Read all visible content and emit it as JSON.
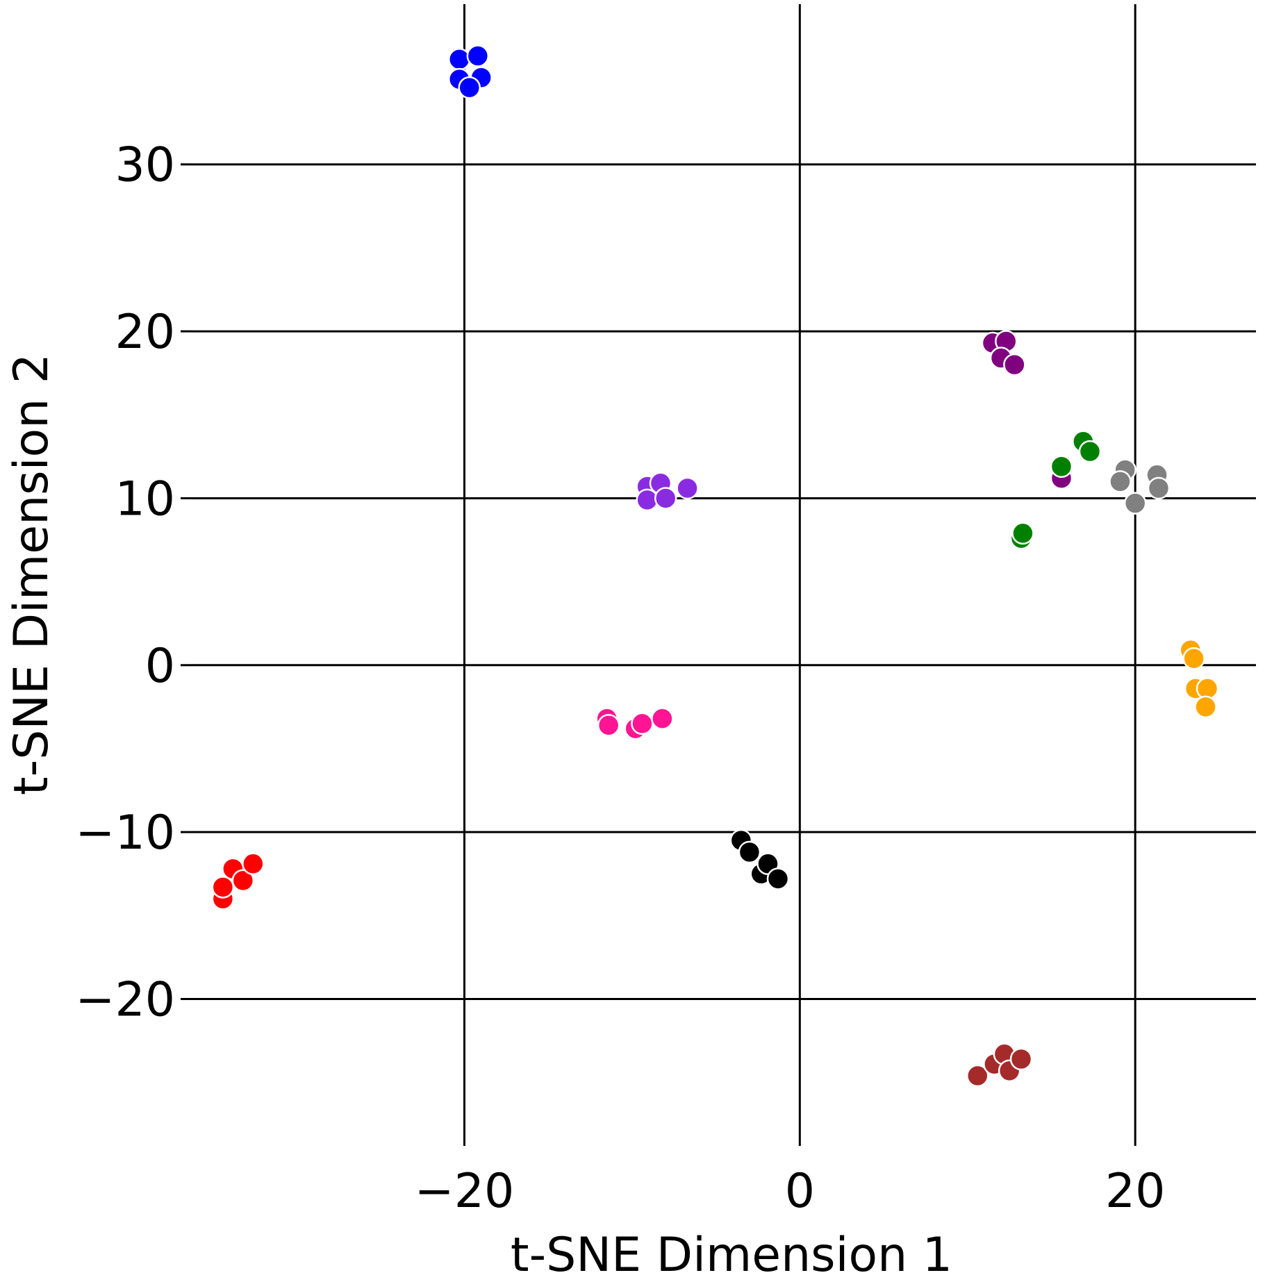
{
  "chart_data": {
    "type": "scatter",
    "title": "",
    "xlabel": "t-SNE Dimension 1",
    "ylabel": "t-SNE Dimension 2",
    "xlim": [
      -36.3,
      27.2
    ],
    "ylim": [
      -28.8,
      39.6
    ],
    "grid": true,
    "x_ticks": [
      -20,
      0,
      20
    ],
    "y_ticks": [
      -20,
      -10,
      0,
      10,
      20,
      30
    ],
    "x_tick_labels": [
      "−20",
      "0",
      "20"
    ],
    "y_tick_labels": [
      "−20",
      "−10",
      "0",
      "10",
      "20",
      "30"
    ],
    "marker_edge_color": "#ffffff",
    "series": [
      {
        "color": "#0000ff",
        "points": [
          [
            -20.3,
            36.3
          ],
          [
            -19.2,
            36.5
          ],
          [
            -20.3,
            35.1
          ],
          [
            -19.0,
            35.2
          ],
          [
            -19.7,
            34.6
          ]
        ]
      },
      {
        "color": "#8a2be2",
        "points": [
          [
            -9.1,
            10.7
          ],
          [
            -8.3,
            10.9
          ],
          [
            -6.7,
            10.6
          ],
          [
            -9.1,
            9.9
          ],
          [
            -8.0,
            10.0
          ]
        ]
      },
      {
        "color": "#ff1493",
        "points": [
          [
            -11.5,
            -3.2
          ],
          [
            -11.4,
            -3.6
          ],
          [
            -9.8,
            -3.8
          ],
          [
            -9.4,
            -3.5
          ],
          [
            -8.2,
            -3.2
          ]
        ]
      },
      {
        "color": "#000000",
        "points": [
          [
            -3.5,
            -10.5
          ],
          [
            -3.0,
            -11.2
          ],
          [
            -2.3,
            -12.5
          ],
          [
            -1.9,
            -11.9
          ],
          [
            -1.3,
            -12.8
          ]
        ]
      },
      {
        "color": "#ff0000",
        "points": [
          [
            -34.4,
            -14.0
          ],
          [
            -34.4,
            -13.3
          ],
          [
            -33.8,
            -12.2
          ],
          [
            -33.2,
            -12.9
          ],
          [
            -32.6,
            -11.9
          ]
        ]
      },
      {
        "color": "#800080",
        "points": [
          [
            11.5,
            19.3
          ],
          [
            12.3,
            19.4
          ],
          [
            12.0,
            18.4
          ],
          [
            12.8,
            18.0
          ],
          [
            15.6,
            11.2
          ]
        ]
      },
      {
        "color": "#008000",
        "points": [
          [
            16.9,
            13.4
          ],
          [
            17.3,
            12.8
          ],
          [
            15.6,
            11.9
          ],
          [
            13.2,
            7.6
          ],
          [
            13.3,
            7.9
          ]
        ]
      },
      {
        "color": "#808080",
        "points": [
          [
            19.4,
            11.7
          ],
          [
            19.1,
            11.0
          ],
          [
            21.3,
            11.4
          ],
          [
            21.4,
            10.6
          ],
          [
            20.0,
            9.7
          ]
        ]
      },
      {
        "color": "#ffa500",
        "points": [
          [
            23.3,
            0.9
          ],
          [
            23.5,
            0.4
          ],
          [
            23.6,
            -1.4
          ],
          [
            24.3,
            -1.4
          ],
          [
            24.2,
            -2.5
          ]
        ]
      },
      {
        "color": "#a52a2a",
        "points": [
          [
            10.6,
            -24.6
          ],
          [
            11.6,
            -23.9
          ],
          [
            12.2,
            -23.3
          ],
          [
            12.5,
            -24.3
          ],
          [
            13.2,
            -23.6
          ]
        ]
      }
    ]
  }
}
